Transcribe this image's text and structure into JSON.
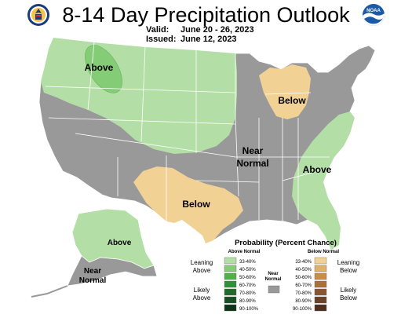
{
  "header": {
    "title": "8-14 Day Precipitation Outlook",
    "valid_label": "Valid:",
    "valid_value": "June 20 - 26, 2023",
    "issued_label": "Issued:",
    "issued_value": "June 12, 2023",
    "left_logo_icon": "doc-seal-icon",
    "right_logo_icon": "noaa-logo-icon",
    "right_logo_text": "NOAA"
  },
  "map": {
    "regions": [
      {
        "id": "northwest",
        "label": "Above",
        "category": "above_33_40"
      },
      {
        "id": "pacific-nw-core",
        "label": "",
        "category": "above_40_50"
      },
      {
        "id": "great-lakes",
        "label": "Below",
        "category": "below_33_40"
      },
      {
        "id": "southern-plains",
        "label": "Below",
        "category": "below_33_40"
      },
      {
        "id": "southeast",
        "label": "Above",
        "category": "above_33_40"
      },
      {
        "id": "central",
        "label": "Near\nNormal",
        "category": "near_normal"
      },
      {
        "id": "alaska",
        "label": "Above",
        "category": "above_33_40"
      },
      {
        "id": "alaska-south",
        "label": "Near\nNormal",
        "category": "near_normal"
      }
    ],
    "labels": {
      "nw": "Above",
      "gl": "Below",
      "nn1": "Near",
      "nn2": "Normal",
      "sp": "Below",
      "se": "Above",
      "ak": "Above",
      "akn1": "Near",
      "akn2": "Normal"
    }
  },
  "legend": {
    "title": "Probability (Percent Chance)",
    "above_header": "Above Normal",
    "below_header": "Below Normal",
    "near_header_1": "Near",
    "near_header_2": "Normal",
    "leaning_above": [
      "Leaning",
      "Above"
    ],
    "likely_above": [
      "Likely",
      "Above"
    ],
    "leaning_below": [
      "Leaning",
      "Below"
    ],
    "likely_below": [
      "Likely",
      "Below"
    ],
    "ranges": [
      "33-40%",
      "40-50%",
      "50-60%",
      "60-70%",
      "70-80%",
      "80-90%",
      "90-100%"
    ],
    "above_colors": [
      "#b3dfa7",
      "#84cc75",
      "#52b049",
      "#2f8f3a",
      "#1f6b2a",
      "#174f21",
      "#0e3316"
    ],
    "below_colors": [
      "#f2d195",
      "#e0b066",
      "#c98d47",
      "#a9703a",
      "#8a5630",
      "#6b4228",
      "#4d2e1f"
    ],
    "near_color": "#999999"
  },
  "colors": {
    "above_33_40": "#b3dfa7",
    "above_40_50": "#84cc75",
    "below_33_40": "#f2d195",
    "near_normal": "#999999",
    "state_lines": "#ffffff"
  }
}
